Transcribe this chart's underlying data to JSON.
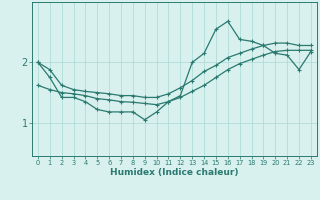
{
  "xlabel": "Humidex (Indice chaleur)",
  "x": [
    0,
    1,
    2,
    3,
    4,
    5,
    6,
    7,
    8,
    9,
    10,
    11,
    12,
    13,
    14,
    15,
    16,
    17,
    18,
    19,
    20,
    21,
    22,
    23
  ],
  "line1": [
    2.0,
    1.75,
    1.42,
    1.42,
    1.35,
    1.22,
    1.18,
    1.18,
    1.18,
    1.05,
    1.18,
    1.35,
    1.45,
    2.0,
    2.15,
    2.55,
    2.68,
    2.38,
    2.35,
    2.28,
    2.15,
    2.12,
    1.88,
    2.18
  ],
  "line2": [
    2.0,
    1.88,
    1.62,
    1.55,
    1.52,
    1.5,
    1.48,
    1.45,
    1.45,
    1.42,
    1.42,
    1.48,
    1.58,
    1.7,
    1.85,
    1.95,
    2.08,
    2.15,
    2.22,
    2.28,
    2.32,
    2.32,
    2.28,
    2.28
  ],
  "line3": [
    1.62,
    1.55,
    1.5,
    1.48,
    1.45,
    1.4,
    1.38,
    1.35,
    1.34,
    1.32,
    1.3,
    1.35,
    1.42,
    1.52,
    1.62,
    1.75,
    1.88,
    1.98,
    2.05,
    2.12,
    2.18,
    2.2,
    2.2,
    2.2
  ],
  "color": "#2a7a70",
  "bg_color": "#d8f0ee",
  "grid_color": "#aad8d4",
  "yticks": [
    1,
    2
  ],
  "ylim": [
    0.45,
    3.0
  ],
  "xlim": [
    -0.5,
    23.5
  ]
}
